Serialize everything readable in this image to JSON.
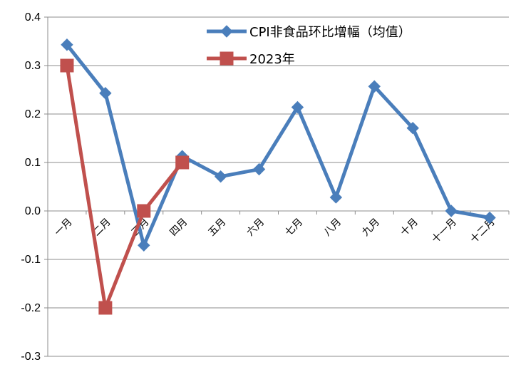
{
  "chart_data": {
    "type": "line",
    "categories": [
      "一月",
      "二月",
      "三月",
      "四月",
      "五月",
      "六月",
      "七月",
      "八月",
      "九月",
      "十月",
      "十一月",
      "十二月"
    ],
    "series": [
      {
        "name": "CPI非食品环比增幅（均值）",
        "color": "#4a7ebb",
        "marker": "diamond",
        "values": [
          0.343,
          0.243,
          -0.071,
          0.113,
          0.071,
          0.086,
          0.214,
          0.028,
          0.257,
          0.171,
          0.0,
          -0.014
        ]
      },
      {
        "name": "2023年",
        "color": "#c0504d",
        "marker": "square",
        "values": [
          0.3,
          -0.2,
          0.0,
          0.1,
          null,
          null,
          null,
          null,
          null,
          null,
          null,
          null
        ]
      }
    ],
    "ylim": [
      -0.3,
      0.4
    ],
    "yticks": [
      "-0.3",
      "-0.2",
      "-0.1",
      "0.0",
      "0.1",
      "0.2",
      "0.3",
      "0.4"
    ],
    "grid": true,
    "legend_position": "top-right"
  }
}
